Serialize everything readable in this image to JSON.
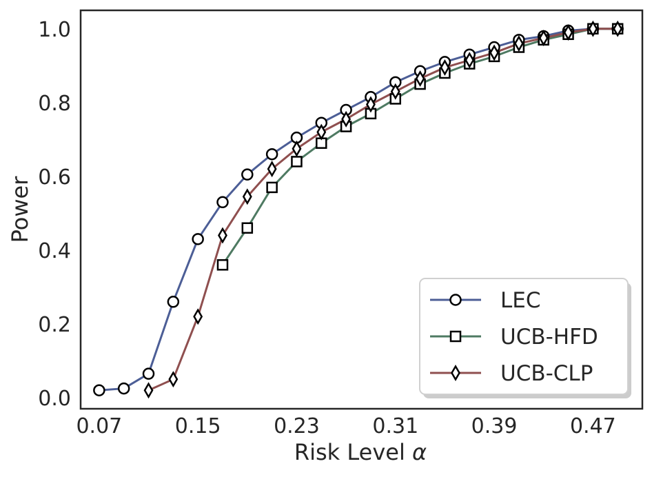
{
  "chart_data": {
    "type": "line",
    "xlabel": "Risk Level",
    "xlabel_symbol": "α",
    "ylabel": "Power",
    "xlim": [
      0.055,
      0.51
    ],
    "ylim": [
      -0.03,
      1.05
    ],
    "xticks": [
      0.07,
      0.15,
      0.23,
      0.31,
      0.39,
      0.47
    ],
    "xtick_labels": [
      "0.07",
      "0.15",
      "0.23",
      "0.31",
      "0.39",
      "0.47"
    ],
    "yticks": [
      0.0,
      0.2,
      0.4,
      0.6,
      0.8,
      1.0
    ],
    "ytick_labels": [
      "0.0",
      "0.2",
      "0.4",
      "0.6",
      "0.8",
      "1.0"
    ],
    "grid": false,
    "legend_position": "lower-right",
    "series": [
      {
        "name": "LEC",
        "color": "#4c5e96",
        "marker": "circle",
        "x": [
          0.07,
          0.09,
          0.11,
          0.13,
          0.15,
          0.17,
          0.19,
          0.21,
          0.23,
          0.25,
          0.27,
          0.29,
          0.31,
          0.33,
          0.35,
          0.37,
          0.39,
          0.41,
          0.43,
          0.45,
          0.47,
          0.49
        ],
        "y": [
          0.02,
          0.025,
          0.065,
          0.26,
          0.43,
          0.53,
          0.605,
          0.66,
          0.705,
          0.745,
          0.78,
          0.815,
          0.855,
          0.885,
          0.91,
          0.93,
          0.95,
          0.97,
          0.98,
          0.995,
          1.0,
          1.0
        ]
      },
      {
        "name": "UCB-HFD",
        "color": "#4e7a62",
        "marker": "square",
        "x": [
          0.17,
          0.19,
          0.21,
          0.23,
          0.25,
          0.27,
          0.29,
          0.31,
          0.33,
          0.35,
          0.37,
          0.39,
          0.41,
          0.43,
          0.45,
          0.47,
          0.49
        ],
        "y": [
          0.36,
          0.46,
          0.57,
          0.64,
          0.69,
          0.735,
          0.77,
          0.81,
          0.85,
          0.88,
          0.905,
          0.925,
          0.95,
          0.97,
          0.985,
          1.0,
          1.0
        ]
      },
      {
        "name": "UCB-CLP",
        "color": "#8f4f4f",
        "marker": "diamond",
        "x": [
          0.11,
          0.13,
          0.15,
          0.17,
          0.19,
          0.21,
          0.23,
          0.25,
          0.27,
          0.29,
          0.31,
          0.33,
          0.35,
          0.37,
          0.39,
          0.41,
          0.43,
          0.45,
          0.47,
          0.49
        ],
        "y": [
          0.02,
          0.05,
          0.22,
          0.44,
          0.545,
          0.62,
          0.675,
          0.72,
          0.755,
          0.795,
          0.83,
          0.865,
          0.895,
          0.915,
          0.935,
          0.96,
          0.975,
          0.99,
          1.0,
          1.0
        ]
      }
    ]
  }
}
